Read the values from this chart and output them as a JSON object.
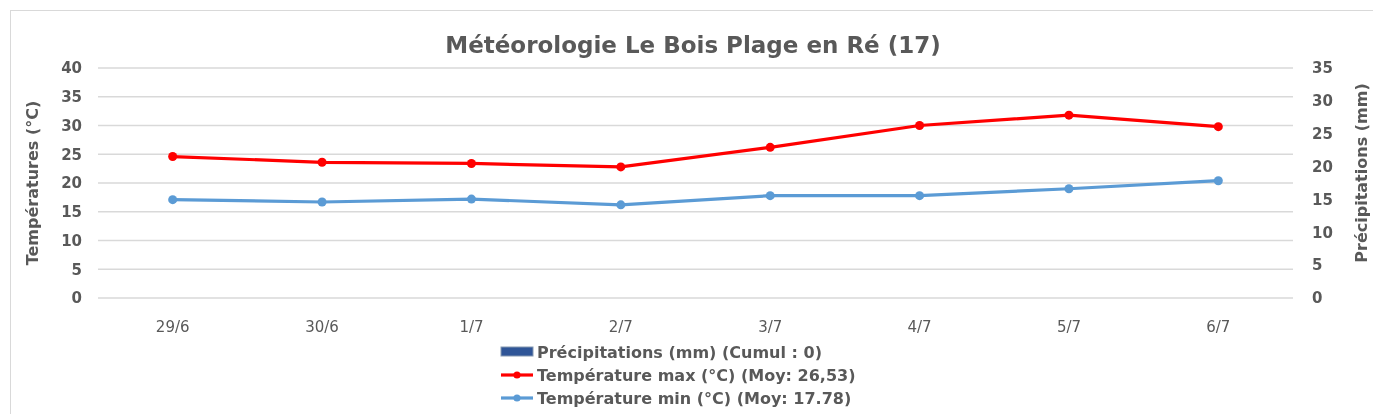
{
  "chart_data": {
    "type": "line",
    "title": "Météorologie Le Bois Plage en Ré (17)",
    "ylabel": "Températures (°C)",
    "y2label": "Précipitations (mm)",
    "categories": [
      "29/6",
      "30/6",
      "1/7",
      "2/7",
      "3/7",
      "4/7",
      "5/7",
      "6/7"
    ],
    "series": [
      {
        "name": "Précipitations (mm) (Cumul : 0)",
        "type": "bar",
        "color": "#2f5597",
        "values": [
          0,
          0,
          0,
          0,
          0,
          0,
          0,
          0
        ]
      },
      {
        "name": "Température max (°C) (Moy: 26,53)",
        "color": "#ff0000",
        "values": [
          24.6,
          23.6,
          23.4,
          22.8,
          26.2,
          30.0,
          31.8,
          29.8
        ]
      },
      {
        "name": "Température min (°C) (Moy: 17.78)",
        "color": "#5b9bd5",
        "values": [
          17.1,
          16.7,
          17.2,
          16.2,
          17.8,
          17.8,
          19.0,
          20.4
        ]
      }
    ],
    "ylim": [
      0,
      40
    ],
    "yticks": [
      0,
      5,
      10,
      15,
      20,
      25,
      30,
      35,
      40
    ],
    "y2lim": [
      0,
      35
    ],
    "y2ticks": [
      0,
      5,
      10,
      15,
      20,
      25,
      30,
      35
    ],
    "grid": "y",
    "legend": "bottom",
    "marker": "circle",
    "line_style": "solid"
  }
}
